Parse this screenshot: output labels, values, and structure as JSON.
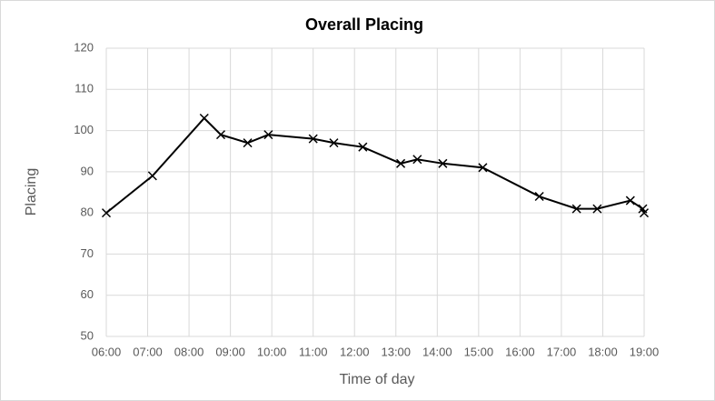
{
  "chart_data": {
    "type": "line",
    "title": "Overall Placing",
    "x_label": "Time of day",
    "y_label": "Placing",
    "x": [
      "06:00",
      "07:07",
      "08:22",
      "08:46",
      "09:25",
      "09:55",
      "11:00",
      "11:30",
      "12:12",
      "13:07",
      "13:31",
      "14:08",
      "15:06",
      "16:28",
      "17:22",
      "17:52",
      "18:40",
      "18:58",
      "19:00"
    ],
    "values": [
      80,
      89,
      103,
      99,
      97,
      99,
      98,
      97,
      96,
      92,
      93,
      92,
      91,
      84,
      81,
      81,
      83,
      81,
      80
    ],
    "color": "#000000",
    "marker": "x",
    "xlim": [
      "06:00",
      "19:00"
    ],
    "xticks": [
      "06:00",
      "07:00",
      "08:00",
      "09:00",
      "10:00",
      "11:00",
      "12:00",
      "13:00",
      "14:00",
      "15:00",
      "16:00",
      "17:00",
      "18:00",
      "19:00"
    ],
    "ylim": [
      50,
      120
    ],
    "yticks": [
      50,
      60,
      70,
      80,
      90,
      100,
      110,
      120
    ],
    "grid": true
  }
}
